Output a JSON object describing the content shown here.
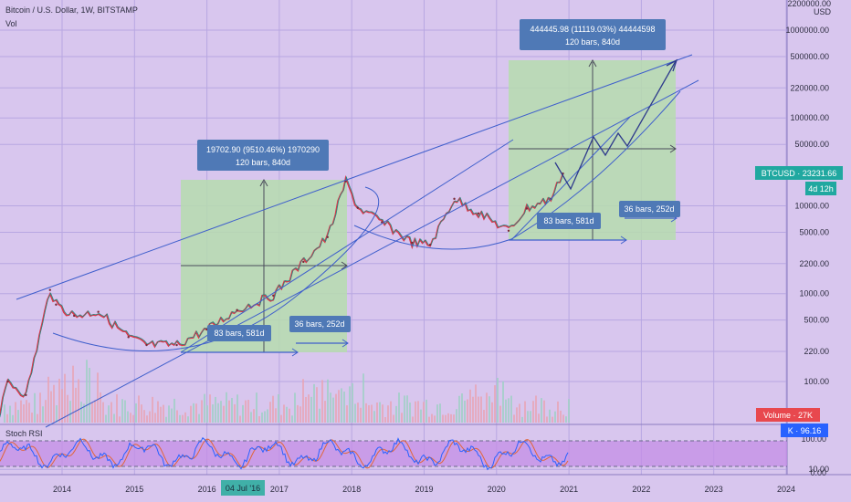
{
  "header": {
    "title": "Bitcoin / U.S. Dollar, 1W, BITSTAMP",
    "volume_label": "Vol"
  },
  "price_axis": {
    "currency": "USD",
    "top_partial": "2200000.00",
    "ticks": [
      "1000000.00",
      "500000.00",
      "220000.00",
      "100000.00",
      "50000.00",
      "10000.00",
      "5000.00",
      "2200.00",
      "1000.00",
      "500.00",
      "220.00",
      "100.00",
      "10.00"
    ]
  },
  "time_axis": {
    "ticks": [
      "2014",
      "2015",
      "2016",
      "2017",
      "2018",
      "2019",
      "2020",
      "2021",
      "2022",
      "2023",
      "2024"
    ],
    "cursor_label": "04 Jul '16"
  },
  "badges": {
    "price": "BTCUSD · 23231.66",
    "countdown": "4d 12h",
    "volume": "Volume · 27K",
    "stoch": "K · 96.16"
  },
  "measure_boxes": [
    {
      "line1": "19702.90 (9510.46%) 1970290",
      "line2": "120 bars, 840d"
    },
    {
      "line1": "444445.98 (11119.03%) 44444598",
      "line2": "120 bars, 840d"
    }
  ],
  "range_labels": [
    "83 bars, 581d",
    "36 bars, 252d",
    "83 bars, 581d",
    "36 bars, 252d"
  ],
  "stoch": {
    "title": "Stoch RSI",
    "axis_ticks": [
      "100.00",
      "0.00"
    ]
  },
  "colors": {
    "background": "#d8c6ee",
    "grid": "#b8a7e2",
    "trendline": "#3f5fcc",
    "measure_fill": "#b6dcae",
    "badge_blue": "#4f79b6",
    "price_badge": "#20a8a0",
    "volume_badge": "#e8484e",
    "stoch_badge": "#2962ff",
    "stoch_band": "#c48ee6"
  },
  "chart_data": {
    "type": "line",
    "title": "Bitcoin / U.S. Dollar, 1W, BITSTAMP",
    "y_scale": "log",
    "ylim": [
      10,
      2200000
    ],
    "xlim": [
      "2013-01",
      "2024-01"
    ],
    "series": [
      {
        "name": "",
        "x": [
          "2013-01",
          "2013-04",
          "2013-07",
          "2013-11",
          "2013-12",
          "2014-03",
          "2014-07",
          "2014-12",
          "2015-03",
          "2015-08",
          "2016-01",
          "2016-06",
          "2016-12",
          "2017-05",
          "2017-09",
          "2017-12",
          "2018-02",
          "2018-06",
          "2018-11",
          "2019-02",
          "2019-06",
          "2019-10",
          "2020-03",
          "2020-06",
          "2020-10",
          "2020-12"
        ],
        "values": [
          15,
          100,
          70,
          1100,
          750,
          560,
          620,
          320,
          260,
          260,
          390,
          650,
          950,
          2300,
          4400,
          19000,
          9500,
          6500,
          3800,
          3600,
          12000,
          8200,
          5200,
          9300,
          12000,
          23231.66
        ]
      }
    ]
  }
}
